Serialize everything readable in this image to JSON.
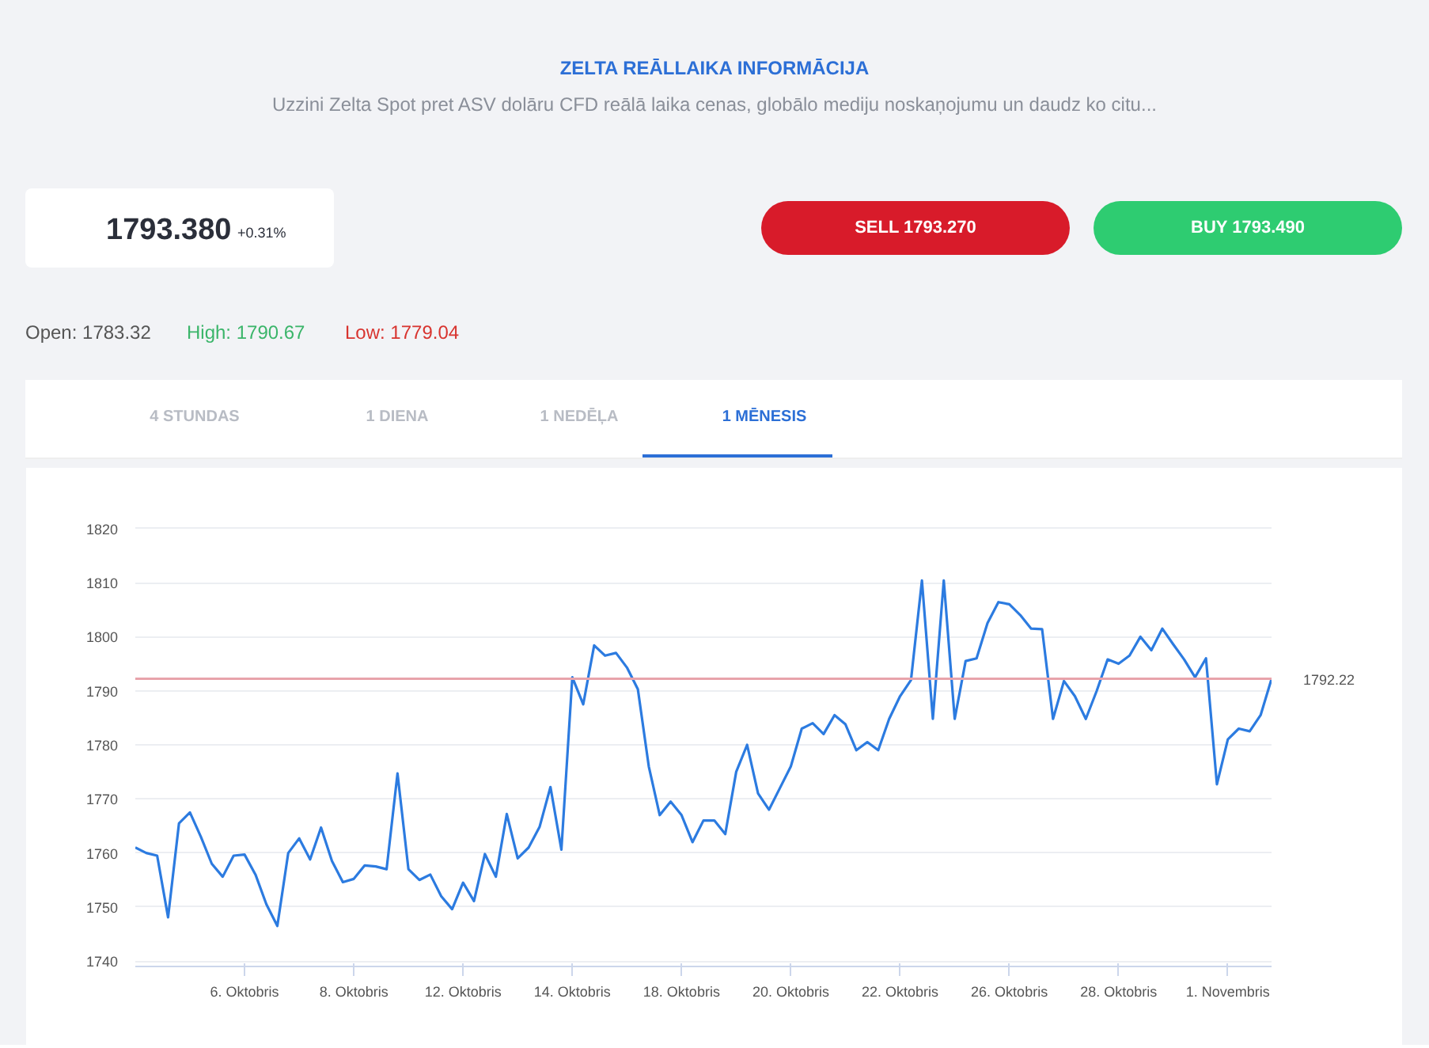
{
  "chart_data": {
    "type": "line",
    "title": "ZELTA REĀLLAIKA INFORMĀCIJA",
    "subtitle": "Uzzini Zelta Spot pret ASV dolāru CFD reālā laika cenas, globālo mediju noskaņojumu un daudz ko citu...",
    "annotations": [
      "1793.380",
      "+0.31%",
      "SELL 1793.270",
      "BUY 1793.490",
      "Open: 1783.32",
      "High: 1790.67",
      "Low: 1779.04",
      "4 STUNDAS",
      "1 DIENA",
      "1 NEDĒĻA",
      "1 MĒNESIS"
    ],
    "categories": [
      null,
      null,
      null,
      null,
      null,
      null,
      null,
      null,
      null,
      null,
      "6. Oktobris",
      null,
      null,
      null,
      null,
      null,
      null,
      null,
      null,
      null,
      "8. Oktobris",
      null,
      null,
      null,
      null,
      null,
      null,
      null,
      null,
      null,
      "12. Oktobris",
      null,
      null,
      null,
      null,
      null,
      null,
      null,
      null,
      null,
      "14. Oktobris",
      null,
      null,
      null,
      null,
      null,
      null,
      null,
      null,
      null,
      "18. Oktobris",
      null,
      null,
      null,
      null,
      null,
      null,
      null,
      null,
      null,
      "20. Oktobris",
      null,
      null,
      null,
      null,
      null,
      null,
      null,
      null,
      null,
      "22. Oktobris",
      null,
      null,
      null,
      null,
      null,
      null,
      null,
      null,
      null,
      "26. Oktobris",
      null,
      null,
      null,
      null,
      null,
      null,
      null,
      null,
      null,
      "28. Oktobris",
      null,
      null,
      null,
      null,
      null,
      null,
      null,
      null,
      null,
      "1. Novembris",
      null,
      null,
      null,
      null
    ],
    "series": [
      {
        "color": "#2c7be0",
        "values": [
          1761,
          1760,
          1759.5,
          1748.1,
          1765.5,
          1767.5,
          1763,
          1758,
          1755.6,
          1759.5,
          1759.7,
          1756,
          1750.5,
          1746.5,
          1760,
          1762.7,
          1758.8,
          1764.7,
          1758.5,
          1754.6,
          1755.2,
          1757.7,
          1757.5,
          1757,
          1774.7,
          1757,
          1755,
          1756,
          1752,
          1749.6,
          1754.5,
          1751.1,
          1759.8,
          1755.6,
          1767.2,
          1759,
          1761,
          1764.8,
          1772.2,
          1760.6,
          1792.5,
          1787.5,
          1798.4,
          1796.5,
          1797,
          1794.3,
          1790.3,
          1776,
          1767,
          1769.5,
          1767,
          1762,
          1766,
          1766,
          1763.5,
          1775,
          1780,
          1771,
          1768,
          1772,
          1776,
          1783,
          1784,
          1782,
          1785.5,
          1783.8,
          1779,
          1780.5,
          1779,
          1784.8,
          1789,
          1792,
          1810.4,
          1784.8,
          1810.4,
          1784.8,
          1795.5,
          1796,
          1802.5,
          1806.4,
          1806,
          1804,
          1801.5,
          1801.4,
          1784.8,
          1791.8,
          1789,
          1784.8,
          1790,
          1795.8,
          1795,
          1796.5,
          1800,
          1797.5,
          1801.5,
          1798.6,
          1795.8,
          1792.5,
          1796,
          1772.7,
          1781,
          1783,
          1782.5,
          1785.5,
          1792.2
        ]
      }
    ],
    "ylim": [
      1739,
      1821
    ],
    "yticks": [
      1740,
      1750,
      1760,
      1770,
      1780,
      1790,
      1800,
      1810,
      1820
    ],
    "ref_lines": [
      {
        "axis": "y",
        "value": 1792.22,
        "label": "1792.22",
        "color": "#e8a3ab"
      }
    ],
    "grid": "y",
    "marker": "none",
    "line_style": "solid"
  }
}
